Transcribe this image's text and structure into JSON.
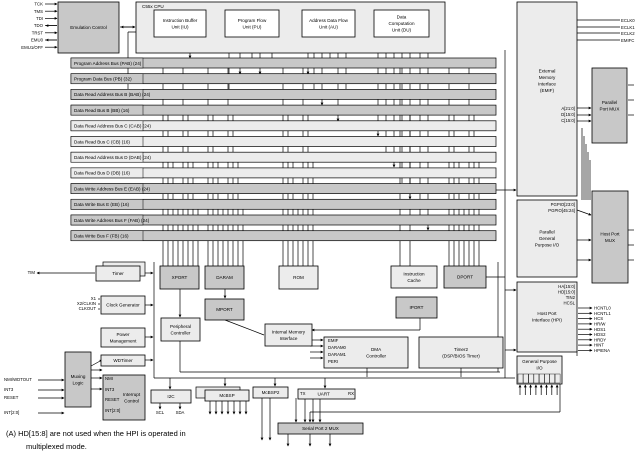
{
  "colors": {
    "dark_block": "#c8c8c8",
    "light_block": "#ececec",
    "white_block": "#ffffff",
    "line": "#000000"
  },
  "emulation": {
    "title": "Emulation Control",
    "signals": [
      "TCK",
      "TMS",
      "TDI",
      "TDO",
      "TRST",
      "EMU0",
      "EMU1/OFF"
    ]
  },
  "cpu": {
    "title": "C55x CPU"
  },
  "blocks": {
    "iu": [
      "Instruction Buffer",
      "Unit (IU)"
    ],
    "pu": [
      "Program Flow",
      "Unit (PU)"
    ],
    "au": [
      "Address Data Flow",
      "Unit (AU)"
    ],
    "du": [
      "Data",
      "Computation",
      "Unit (DU)"
    ],
    "emif": [
      "External",
      "Memory",
      "Interface",
      "(EMIF)"
    ],
    "ppmux": [
      "Parallel",
      "Port MUX"
    ],
    "pgpio": [
      "Parallel",
      "General",
      "Purpose I/O"
    ],
    "hpmux": [
      "Host Port",
      "MUX"
    ],
    "hpi": [
      "Host Port",
      "Interface (HPI)"
    ],
    "gpio": [
      "General Purpose",
      "I/O"
    ],
    "timer": [
      "Timer"
    ],
    "xport": [
      "XPORT"
    ],
    "daram": [
      "DARAM"
    ],
    "rom": [
      "ROM"
    ],
    "icache": [
      "Instruction",
      "Cache"
    ],
    "dport": [
      "DPORT"
    ],
    "mport": [
      "MPORT"
    ],
    "iport": [
      "IPORT"
    ],
    "clk": [
      "Clock Generator"
    ],
    "pwr": [
      "Power",
      "Management"
    ],
    "periph": [
      "Peripheral",
      "Controller"
    ],
    "imi": [
      "Internal Memory",
      "Interface"
    ],
    "dma": [
      "DMA",
      "Controller"
    ],
    "timer2": [
      "Timer2",
      "(DSP/BIOS Timer)"
    ],
    "wdt": [
      "WDTimer"
    ],
    "mux": [
      "Muxing",
      "Logic"
    ],
    "intc": [
      "Interrupt",
      "Control"
    ],
    "i2c": [
      "I2C"
    ],
    "mcbsp": [
      "McBSP"
    ],
    "mcbsp2": [
      "McBSP2"
    ],
    "uart": [
      "UART"
    ],
    "sp2mux": [
      "Serial Port 2 MUX"
    ]
  },
  "buses": [
    "Program Address Bus (PAB) (24)",
    "Program Data Bus (PB) (32)",
    "Data Read Address Bus B (BAB) (24)",
    "Data Read Bus B (BB) (16)",
    "Data Read Address Bus C (CAB) (24)",
    "Data Read Bus C (CB) (16)",
    "Data Read Address Bus D (DAB) (24)",
    "Data Read Bus D (DB) (16)",
    "Data Write Address Bus E (EAB) (24)",
    "Data Write Bus E (EB) (16)",
    "Data Write Address Bus F (FAB) (24)",
    "Data Write Bus F (FB) (16)"
  ],
  "pins": {
    "emif_top": [
      "ECLK0",
      "ECLK1",
      "ECLK2",
      "EMIFC"
    ],
    "emif": [
      "A[21:0]",
      "D[15:0]",
      "C[15:0]"
    ],
    "pgpio": [
      "PGPIO[23:0]",
      "PGPIO[45:24]"
    ],
    "hpi": [
      "HA[15:0]",
      "HD[15:0]",
      "TIN2",
      "HCSL"
    ],
    "hpi_signals": [
      "HCNTL0",
      "HCNTL1",
      "HCS",
      "HR/W",
      "HDS1",
      "HDS2",
      "HRDY",
      "HINT",
      "HPIENA"
    ],
    "dma": [
      "EMIF",
      "DARAM0",
      "DARAM1",
      "PERI"
    ],
    "intc": [
      "NMI",
      "INT3",
      "RESET",
      "INT[2:0]"
    ],
    "intc_inputs": [
      "NMI/WDTOUT",
      "INT3",
      "RESET",
      "INT[2:0]"
    ],
    "clk": [
      "X1",
      "X2/CLKIN",
      "CLKOUT"
    ],
    "tim": "TIM",
    "i2c": [
      "SCL",
      "SDA"
    ],
    "uart": [
      "TX",
      "RX"
    ]
  },
  "footnote": [
    "(A)   HD[15:8] are not used when the HPI is operated in",
    "multiplexed mode."
  ]
}
